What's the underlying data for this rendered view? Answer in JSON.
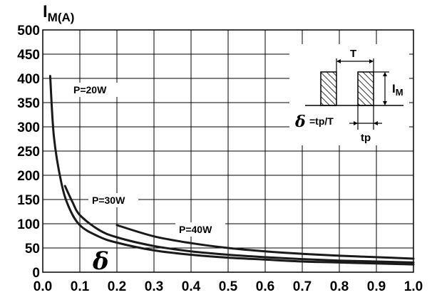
{
  "chart_data": {
    "type": "line",
    "ylabel_main": "I",
    "ylabel_sub": "M(A)",
    "xlabel_symbol": "δ",
    "xlim": [
      0.0,
      1.0
    ],
    "ylim": [
      0,
      500
    ],
    "grid": true,
    "x_ticks": [
      "0.0",
      "0.1",
      "0.2",
      "0.3",
      "0.4",
      "0.5",
      "0.6",
      "0.7",
      "0.8",
      "0.9",
      "1.0"
    ],
    "y_ticks": [
      "0",
      "50",
      "100",
      "150",
      "200",
      "250",
      "300",
      "350",
      "400",
      "450",
      "500"
    ],
    "series": [
      {
        "name": "P=20W",
        "x": [
          0.02,
          0.03,
          0.05,
          0.07,
          0.1,
          0.15,
          0.2,
          0.3,
          0.4,
          0.5,
          0.6,
          0.7,
          0.8,
          0.9,
          1.0
        ],
        "y": [
          405,
          280,
          185,
          135,
          97,
          74,
          61,
          45,
          36,
          30,
          26,
          22,
          20,
          18,
          16
        ]
      },
      {
        "name": "P=30W",
        "x": [
          0.06,
          0.08,
          0.1,
          0.15,
          0.2,
          0.3,
          0.4,
          0.5,
          0.6,
          0.7,
          0.8,
          0.9,
          1.0
        ],
        "y": [
          178,
          145,
          118,
          88,
          72,
          54,
          43,
          36,
          31,
          27,
          24,
          22,
          20
        ]
      },
      {
        "name": "P=40W",
        "x": [
          0.2,
          0.3,
          0.4,
          0.5,
          0.6,
          0.7,
          0.8,
          0.9,
          1.0
        ],
        "y": [
          97,
          74,
          60,
          50,
          43,
          38,
          34,
          31,
          28
        ]
      }
    ],
    "inset": {
      "period_label": "T",
      "current_label_main": "I",
      "current_label_sub": "M",
      "formula": "=tp/T",
      "formula_symbol": "δ",
      "pulse_label": "tp"
    }
  }
}
